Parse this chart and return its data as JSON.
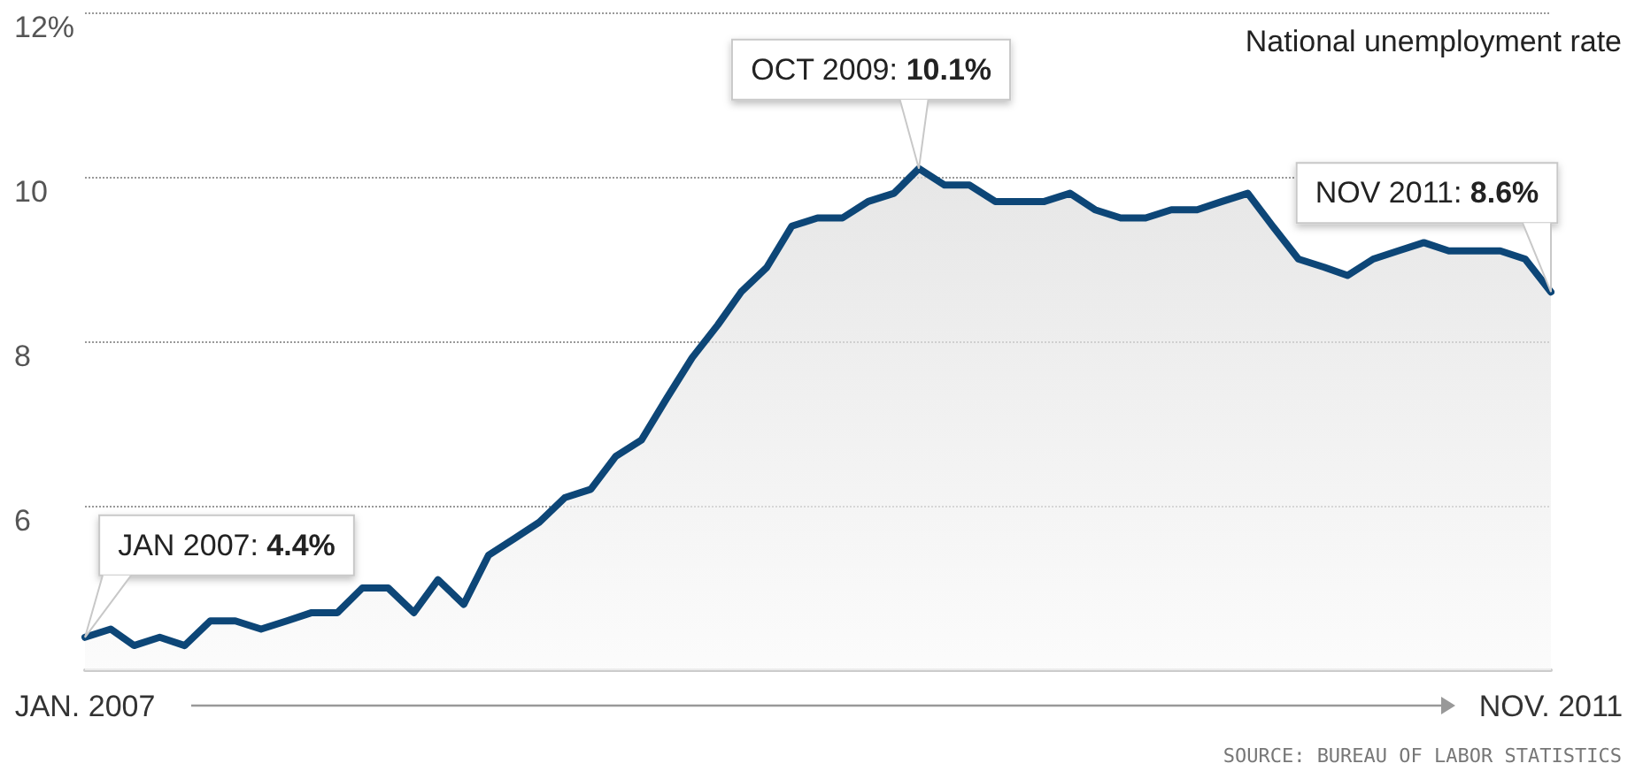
{
  "chart_data": {
    "type": "area",
    "title": "National unemployment rate",
    "x": [
      "2007-01",
      "2007-02",
      "2007-03",
      "2007-04",
      "2007-05",
      "2007-06",
      "2007-07",
      "2007-08",
      "2007-09",
      "2007-10",
      "2007-11",
      "2007-12",
      "2008-01",
      "2008-02",
      "2008-03",
      "2008-04",
      "2008-05",
      "2008-06",
      "2008-07",
      "2008-08",
      "2008-09",
      "2008-10",
      "2008-11",
      "2008-12",
      "2009-01",
      "2009-02",
      "2009-03",
      "2009-04",
      "2009-05",
      "2009-06",
      "2009-07",
      "2009-08",
      "2009-09",
      "2009-10",
      "2009-11",
      "2009-12",
      "2010-01",
      "2010-02",
      "2010-03",
      "2010-04",
      "2010-05",
      "2010-06",
      "2010-07",
      "2010-08",
      "2010-09",
      "2010-10",
      "2010-11",
      "2010-12",
      "2011-01",
      "2011-02",
      "2011-03",
      "2011-04",
      "2011-05",
      "2011-06",
      "2011-07",
      "2011-08",
      "2011-09",
      "2011-10",
      "2011-11"
    ],
    "series": [
      {
        "color": "#0d4677",
        "values": [
          4.4,
          4.5,
          4.3,
          4.4,
          4.3,
          4.6,
          4.6,
          4.5,
          4.6,
          4.7,
          4.7,
          5.0,
          5.0,
          4.7,
          5.1,
          4.8,
          5.4,
          5.6,
          5.8,
          6.1,
          6.2,
          6.6,
          6.8,
          7.3,
          7.8,
          8.2,
          8.6,
          8.9,
          9.4,
          9.5,
          9.5,
          9.7,
          9.8,
          10.1,
          9.9,
          9.9,
          9.7,
          9.7,
          9.7,
          9.8,
          9.6,
          9.5,
          9.5,
          9.6,
          9.6,
          9.7,
          9.8,
          9.4,
          9.0,
          8.9,
          8.8,
          9.0,
          9.1,
          9.2,
          9.1,
          9.1,
          9.1,
          9.0,
          8.6
        ]
      }
    ],
    "xlim": [
      "2007-01",
      "2011-11"
    ],
    "xticks": [
      {
        "value": "2007-01",
        "label": "JAN. 2007"
      },
      {
        "value": "2011-11",
        "label": "NOV. 2011"
      }
    ],
    "ylim": [
      4,
      12
    ],
    "yticks": [
      {
        "value": 6,
        "label": "6"
      },
      {
        "value": 8,
        "label": "8"
      },
      {
        "value": 10,
        "label": "10"
      },
      {
        "value": 12,
        "label": "12%"
      }
    ],
    "grid": "y",
    "marker": "none",
    "line_style": "solid",
    "annotations": [
      {
        "text": "JAN 2007: 4.4%",
        "x": "2007-01",
        "y": 4.4
      },
      {
        "text": "OCT 2009: 10.1%",
        "x": "2009-10",
        "y": 10.1
      },
      {
        "text": "NOV 2011: 8.6%",
        "x": "2011-11",
        "y": 8.6
      },
      "SOURCE: BUREAU OF LABOR STATISTICS"
    ]
  }
}
